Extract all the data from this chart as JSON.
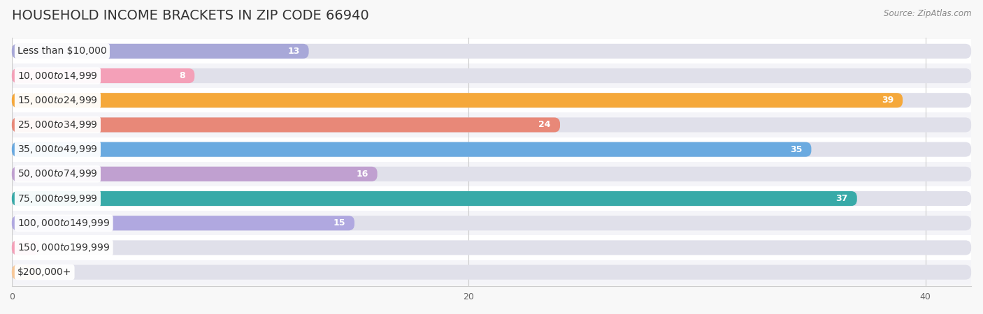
{
  "title": "HOUSEHOLD INCOME BRACKETS IN ZIP CODE 66940",
  "source": "Source: ZipAtlas.com",
  "categories": [
    "Less than $10,000",
    "$10,000 to $14,999",
    "$15,000 to $24,999",
    "$25,000 to $34,999",
    "$35,000 to $49,999",
    "$50,000 to $74,999",
    "$75,000 to $99,999",
    "$100,000 to $149,999",
    "$150,000 to $199,999",
    "$200,000+"
  ],
  "values": [
    13,
    8,
    39,
    24,
    35,
    16,
    37,
    15,
    0,
    0
  ],
  "bar_colors": [
    "#a8a8d8",
    "#f4a0b8",
    "#f5a83a",
    "#e88878",
    "#6aaae0",
    "#c0a0d0",
    "#38aaa8",
    "#b0a8e0",
    "#f4a0b8",
    "#f8c898"
  ],
  "zero_bar_colors": [
    "#f4a0b8",
    "#f8c898"
  ],
  "xlim": [
    0,
    42
  ],
  "xlim_max": 42,
  "xticks": [
    0,
    20,
    40
  ],
  "background_color": "#f0f0f5",
  "row_bg_color": "#f8f8f8",
  "bar_bg_color": "#e4e4ec",
  "title_fontsize": 14,
  "label_fontsize": 10,
  "value_fontsize": 9
}
